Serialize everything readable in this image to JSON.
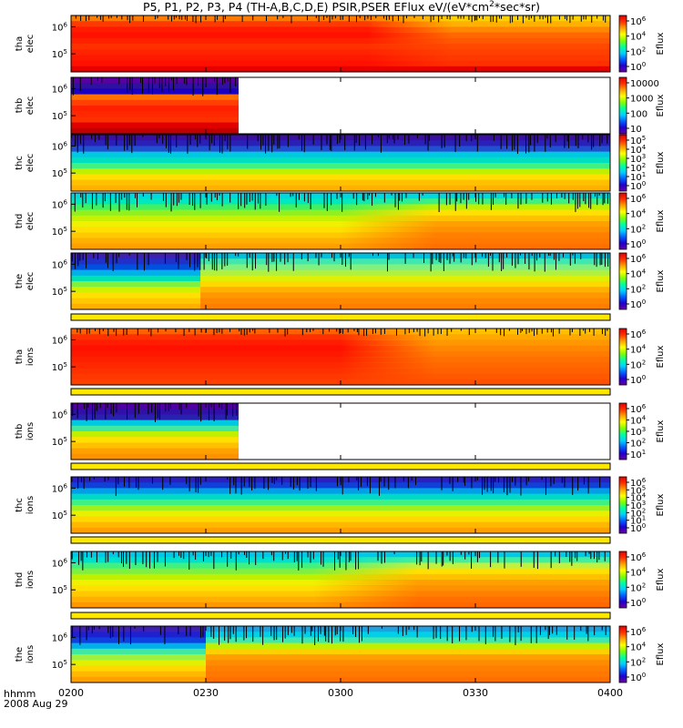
{
  "title": {
    "main": "P5, P1, P2, P3, P4 (TH-A,B,C,D,E) PSIR,PSER EFlux eV/(eV*cm",
    "sup": "2",
    "tail": "*sec*sr)"
  },
  "footer": {
    "time_label": "hhmm",
    "date_label": "2008 Aug 29"
  },
  "chart_data": {
    "type": "heatmap",
    "x_ticks": [
      "0200",
      "0230",
      "0300",
      "0330",
      "0400"
    ],
    "x_range": [
      "02:00",
      "04:00"
    ],
    "colorbar_label": "Eflux",
    "panels": [
      {
        "probe": "tha",
        "species": "elec",
        "y_ticks": [
          {
            "base": "10",
            "exp": "6"
          },
          {
            "base": "10",
            "exp": "5"
          }
        ],
        "z_ticks": [
          {
            "base": "10",
            "exp": "6"
          },
          {
            "base": "10",
            "exp": "4"
          },
          {
            "base": "10",
            "exp": "2"
          },
          {
            "base": "10",
            "exp": "0"
          }
        ],
        "data_end_fraction": 1.0,
        "rows": 10,
        "regimes": [
          {
            "from": 0.0,
            "to": 1.0,
            "rows": [
              "#ff7a00",
              "#ff3a00",
              "#ff1a00",
              "#ff1000",
              "#ff2000",
              "#ff3000",
              "#ff2400",
              "#ff1800",
              "#ff1000",
              "#e80000"
            ]
          }
        ],
        "warm_blend": {
          "fraction": 0.55,
          "rows": [
            "#ffd000",
            "#ffb000",
            "#ff8800",
            "#ff6800",
            "#ff5800",
            "#ff4800",
            "#ff4000",
            "#ff3800",
            "#ff3000",
            "#e80000"
          ]
        }
      },
      {
        "probe": "thb",
        "species": "elec",
        "y_ticks": [
          {
            "base": "10",
            "exp": "6"
          },
          {
            "base": "10",
            "exp": "5"
          }
        ],
        "z_ticks": [
          {
            "base": "",
            "exp": "",
            "plain": "10000"
          },
          {
            "base": "",
            "exp": "",
            "plain": "1000"
          },
          {
            "base": "",
            "exp": "",
            "plain": "100"
          },
          {
            "base": "",
            "exp": "",
            "plain": "10"
          }
        ],
        "data_end_fraction": 0.31,
        "rows": 10,
        "regimes": [
          {
            "from": 0.0,
            "to": 1.0,
            "rows": [
              "#5a00a0",
              "#3010a0",
              "#1a00c0",
              "#ff7000",
              "#ff4000",
              "#ff2000",
              "#ff2800",
              "#ff3000",
              "#e00000",
              "#c00000"
            ]
          }
        ]
      },
      {
        "probe": "thc",
        "species": "elec",
        "y_ticks": [
          {
            "base": "10",
            "exp": "6"
          },
          {
            "base": "10",
            "exp": "5"
          }
        ],
        "z_ticks": [
          {
            "base": "10",
            "exp": "5"
          },
          {
            "base": "10",
            "exp": "4"
          },
          {
            "base": "10",
            "exp": "3"
          },
          {
            "base": "10",
            "exp": "2"
          },
          {
            "base": "10",
            "exp": "1"
          },
          {
            "base": "10",
            "exp": "0"
          }
        ],
        "data_end_fraction": 1.0,
        "rows": 10,
        "regimes": [
          {
            "from": 0.0,
            "to": 1.0,
            "rows": [
              "#3a10a0",
              "#2a20b8",
              "#2050d0",
              "#00c8e0",
              "#00e0c0",
              "#40f080",
              "#c0f000",
              "#ffe000",
              "#ffc000",
              "#ffb000"
            ]
          }
        ]
      },
      {
        "probe": "thd",
        "species": "elec",
        "y_ticks": [
          {
            "base": "10",
            "exp": "6"
          },
          {
            "base": "10",
            "exp": "5"
          }
        ],
        "z_ticks": [
          {
            "base": "10",
            "exp": "6"
          },
          {
            "base": "10",
            "exp": "4"
          },
          {
            "base": "10",
            "exp": "2"
          },
          {
            "base": "10",
            "exp": "0"
          }
        ],
        "data_end_fraction": 1.0,
        "rows": 10,
        "regimes": [
          {
            "from": 0.0,
            "to": 1.0,
            "rows": [
              "#00d8e0",
              "#00e8c0",
              "#40f060",
              "#90f020",
              "#c8f000",
              "#f0f000",
              "#ffe000",
              "#ffc800",
              "#ffb000",
              "#ffa000"
            ]
          }
        ],
        "warm_blend": {
          "fraction": 0.5,
          "rows": [
            "#00d8e0",
            "#40f080",
            "#c0f000",
            "#ffe000",
            "#ffc000",
            "#ffa000",
            "#ff9000",
            "#ff8000",
            "#ff7800",
            "#ff7000"
          ]
        }
      },
      {
        "probe": "the",
        "species": "elec",
        "y_ticks": [
          {
            "base": "10",
            "exp": "6"
          },
          {
            "base": "10",
            "exp": "5"
          }
        ],
        "z_ticks": [
          {
            "base": "10",
            "exp": "6"
          },
          {
            "base": "10",
            "exp": "4"
          },
          {
            "base": "10",
            "exp": "2"
          },
          {
            "base": "10",
            "exp": "0"
          }
        ],
        "data_end_fraction": 1.0,
        "rows": 10,
        "regimes": [
          {
            "from": 0.0,
            "to": 0.24,
            "rows": [
              "#4020b0",
              "#2030c8",
              "#0050e0",
              "#00b0e8",
              "#00e0b0",
              "#80f040",
              "#d0f000",
              "#ffe000",
              "#ffc800",
              "#ffb000"
            ]
          },
          {
            "from": 0.24,
            "to": 1.0,
            "rows": [
              "#00c0e0",
              "#40e8b0",
              "#80f080",
              "#b0f040",
              "#e0f000",
              "#ffd800",
              "#ffb000",
              "#ff9800",
              "#ff8800",
              "#ff8000"
            ]
          }
        ]
      },
      {
        "probe": "tha",
        "species": "ions",
        "y_ticks": [
          {
            "base": "10",
            "exp": "6"
          },
          {
            "base": "10",
            "exp": "5"
          }
        ],
        "z_ticks": [
          {
            "base": "10",
            "exp": "6"
          },
          {
            "base": "10",
            "exp": "4"
          },
          {
            "base": "10",
            "exp": "2"
          },
          {
            "base": "10",
            "exp": "0"
          }
        ],
        "data_end_fraction": 1.0,
        "rows": 10,
        "regimes": [
          {
            "from": 0.0,
            "to": 1.0,
            "rows": [
              "#ff6000",
              "#ff3000",
              "#ff1c00",
              "#ff1000",
              "#ff1800",
              "#ff2000",
              "#ff2800",
              "#ff3000",
              "#ff3800",
              "#ff4000"
            ]
          }
        ],
        "warm_blend": {
          "fraction": 0.5,
          "rows": [
            "#ffc000",
            "#ffa800",
            "#ff9800",
            "#ff8800",
            "#ff7c00",
            "#ff7000",
            "#ff6800",
            "#ff6000",
            "#ff5800",
            "#ff5000"
          ]
        }
      },
      {
        "probe": "thb",
        "species": "ions",
        "y_ticks": [
          {
            "base": "10",
            "exp": "6"
          },
          {
            "base": "10",
            "exp": "5"
          }
        ],
        "z_ticks": [
          {
            "base": "10",
            "exp": "6"
          },
          {
            "base": "10",
            "exp": "4"
          },
          {
            "base": "10",
            "exp": "3"
          },
          {
            "base": "10",
            "exp": "2"
          },
          {
            "base": "10",
            "exp": "1"
          }
        ],
        "data_end_fraction": 0.31,
        "rows": 10,
        "regimes": [
          {
            "from": 0.0,
            "to": 1.0,
            "rows": [
              "#5000a0",
              "#3010a8",
              "#2a20b0",
              "#00c8e0",
              "#40e8a0",
              "#c0f000",
              "#ffe000",
              "#ffc000",
              "#ffa000",
              "#ff9000"
            ]
          }
        ]
      },
      {
        "probe": "thc",
        "species": "ions",
        "y_ticks": [
          {
            "base": "10",
            "exp": "6"
          },
          {
            "base": "10",
            "exp": "5"
          }
        ],
        "z_ticks": [
          {
            "base": "10",
            "exp": "6"
          },
          {
            "base": "10",
            "exp": "5"
          },
          {
            "base": "10",
            "exp": "4"
          },
          {
            "base": "10",
            "exp": "3"
          },
          {
            "base": "10",
            "exp": "2"
          },
          {
            "base": "10",
            "exp": "1"
          },
          {
            "base": "10",
            "exp": "0"
          }
        ],
        "data_end_fraction": 1.0,
        "rows": 10,
        "regimes": [
          {
            "from": 0.0,
            "to": 1.0,
            "rows": [
              "#2a20c0",
              "#1040d8",
              "#00a0e8",
              "#00d8c8",
              "#40f080",
              "#a0f020",
              "#e8f000",
              "#ffd800",
              "#ffb800",
              "#ffa000"
            ]
          }
        ]
      },
      {
        "probe": "thd",
        "species": "ions",
        "y_ticks": [
          {
            "base": "10",
            "exp": "6"
          },
          {
            "base": "10",
            "exp": "5"
          }
        ],
        "z_ticks": [
          {
            "base": "10",
            "exp": "6"
          },
          {
            "base": "10",
            "exp": "4"
          },
          {
            "base": "10",
            "exp": "2"
          },
          {
            "base": "10",
            "exp": "0"
          }
        ],
        "data_end_fraction": 1.0,
        "rows": 10,
        "regimes": [
          {
            "from": 0.0,
            "to": 1.0,
            "rows": [
              "#00c8e8",
              "#00e0d0",
              "#40f080",
              "#80f040",
              "#c0f000",
              "#f0f000",
              "#ffe000",
              "#ffc800",
              "#ffb000",
              "#ff9800"
            ]
          }
        ],
        "warm_blend": {
          "fraction": 0.45,
          "rows": [
            "#00c8e8",
            "#40f0a0",
            "#c0f040",
            "#ffe000",
            "#ffc000",
            "#ffa000",
            "#ff9000",
            "#ff8000",
            "#ff7000",
            "#ff6800"
          ]
        }
      },
      {
        "probe": "the",
        "species": "ions",
        "y_ticks": [
          {
            "base": "10",
            "exp": "6"
          },
          {
            "base": "10",
            "exp": "5"
          }
        ],
        "z_ticks": [
          {
            "base": "10",
            "exp": "6"
          },
          {
            "base": "10",
            "exp": "4"
          },
          {
            "base": "10",
            "exp": "2"
          },
          {
            "base": "10",
            "exp": "0"
          }
        ],
        "data_end_fraction": 1.0,
        "rows": 10,
        "regimes": [
          {
            "from": 0.0,
            "to": 0.25,
            "rows": [
              "#4020b0",
              "#2020d0",
              "#1040e0",
              "#00b0e8",
              "#40e8a0",
              "#a0f040",
              "#e0f000",
              "#ffd800",
              "#ffb800",
              "#ffa000"
            ]
          },
          {
            "from": 0.25,
            "to": 1.0,
            "rows": [
              "#20a0e0",
              "#00d0e8",
              "#40e8b0",
              "#c0f000",
              "#ffd000",
              "#ffa000",
              "#ff8c00",
              "#ff8000",
              "#ff7800",
              "#ff7000"
            ]
          }
        ]
      }
    ]
  }
}
